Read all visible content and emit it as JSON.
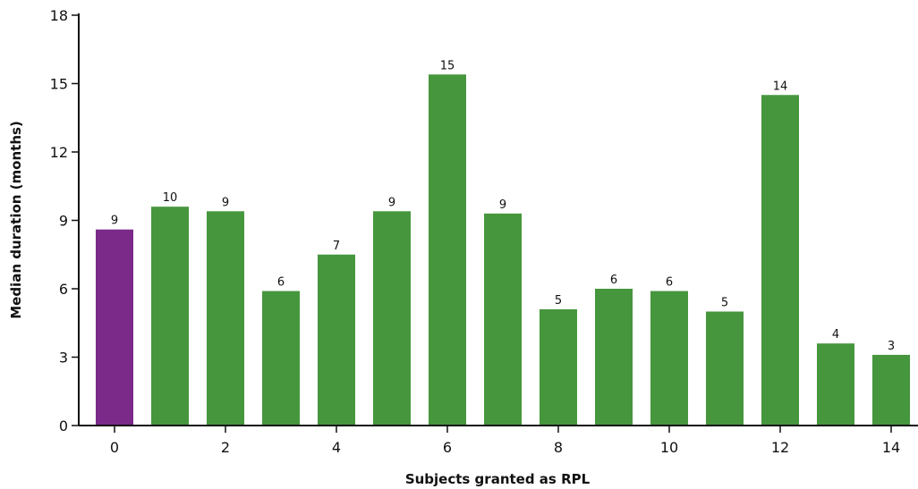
{
  "chart_data": {
    "type": "bar",
    "categories": [
      0,
      1,
      2,
      3,
      4,
      5,
      6,
      7,
      8,
      9,
      10,
      11,
      12,
      13,
      14
    ],
    "values": [
      8.6,
      9.6,
      9.4,
      5.9,
      7.5,
      9.4,
      15.4,
      9.3,
      5.1,
      6.0,
      5.9,
      5.0,
      14.5,
      3.6,
      3.1
    ],
    "data_labels": [
      "9",
      "10",
      "9",
      "6",
      "7",
      "9",
      "15",
      "9",
      "5",
      "6",
      "6",
      "5",
      "14",
      "4",
      "3"
    ],
    "xlabel": "Subjects granted as RPL",
    "ylabel": "Median duration (months)",
    "ylim": [
      0,
      18
    ],
    "yticks": [
      0,
      3,
      6,
      9,
      12,
      15,
      18
    ],
    "xticks": [
      0,
      2,
      4,
      6,
      8,
      10,
      12,
      14
    ],
    "colors": {
      "highlight": "#7b2a8a",
      "default": "#46963d"
    },
    "highlight_index": 0,
    "grid": false,
    "legend": "none"
  }
}
